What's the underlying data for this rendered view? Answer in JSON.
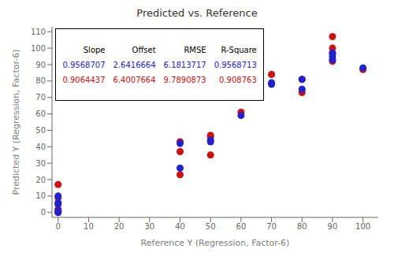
{
  "chart_data": {
    "type": "scatter",
    "title": "Predicted vs. Reference",
    "x_label": "Reference Y (Regression, Factor-6)",
    "y_label": "Predicted Y (Regression, Factor-6)",
    "xlim": [
      -2,
      105
    ],
    "ylim": [
      -3,
      113
    ],
    "xticks": [
      0,
      10,
      20,
      30,
      40,
      50,
      60,
      70,
      80,
      90,
      100
    ],
    "yticks": [
      0,
      10,
      20,
      30,
      40,
      50,
      60,
      70,
      80,
      90,
      100,
      110
    ],
    "grid": false,
    "series": [
      {
        "color": "#cc1111",
        "x": [
          0,
          0,
          0,
          0,
          0,
          40,
          40,
          40,
          50,
          50,
          50,
          60,
          70,
          80,
          80,
          90,
          90,
          90,
          90,
          100
        ],
        "y": [
          0,
          1,
          9,
          17,
          2,
          23,
          37,
          43,
          35,
          46,
          47,
          61,
          84,
          73,
          81,
          92,
          97,
          100,
          107,
          87
        ]
      },
      {
        "color": "#2222cc",
        "x": [
          0,
          0,
          0,
          0,
          0,
          40,
          40,
          50,
          50,
          60,
          70,
          70,
          80,
          80,
          90,
          90,
          90,
          100
        ],
        "y": [
          0,
          1,
          5,
          6,
          10,
          27,
          42,
          43,
          44,
          59,
          78,
          79,
          75,
          81,
          93,
          95,
          97,
          88
        ]
      }
    ],
    "table": {
      "headers": [
        "Slope",
        "Offset",
        "RMSE",
        "R-Square"
      ],
      "rows": [
        {
          "color": "#2222cc",
          "cells": [
            "0.9568707",
            "2.6416664",
            "6.1813717",
            "0.9568713"
          ]
        },
        {
          "color": "#cc1111",
          "cells": [
            "0.9064437",
            "6.4007664",
            "9.7890873",
            "0.908763"
          ]
        }
      ]
    }
  }
}
